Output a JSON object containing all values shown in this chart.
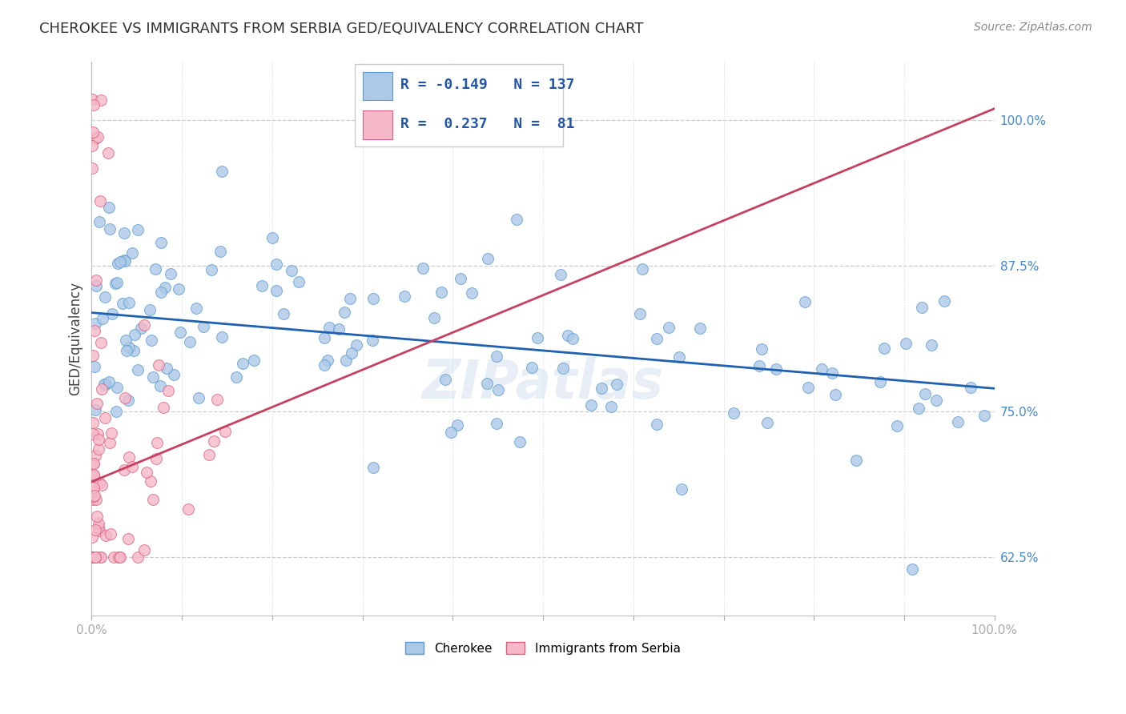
{
  "title": "CHEROKEE VS IMMIGRANTS FROM SERBIA GED/EQUIVALENCY CORRELATION CHART",
  "source": "Source: ZipAtlas.com",
  "ylabel": "GED/Equivalency",
  "ytick_labels": [
    "62.5%",
    "75.0%",
    "87.5%",
    "100.0%"
  ],
  "ytick_values": [
    0.625,
    0.75,
    0.875,
    1.0
  ],
  "cherokee_R": -0.149,
  "cherokee_N": 137,
  "serbia_R": 0.237,
  "serbia_N": 81,
  "color_cherokee_fill": "#adc9e8",
  "color_cherokee_edge": "#5b9bd5",
  "color_serbia_fill": "#f4b8c8",
  "color_serbia_edge": "#e06080",
  "color_line_cherokee": "#2060b0",
  "color_line_serbia": "#c84060",
  "background_color": "#ffffff",
  "grid_color": "#cccccc",
  "title_fontsize": 13,
  "source_fontsize": 10,
  "marker_size": 100,
  "xlim": [
    0,
    100
  ],
  "ylim": [
    0.575,
    1.05
  ],
  "cherokee_line_start_y": 0.835,
  "cherokee_line_end_y": 0.77,
  "serbia_line_start_y": 0.69,
  "serbia_line_end_y": 1.01
}
